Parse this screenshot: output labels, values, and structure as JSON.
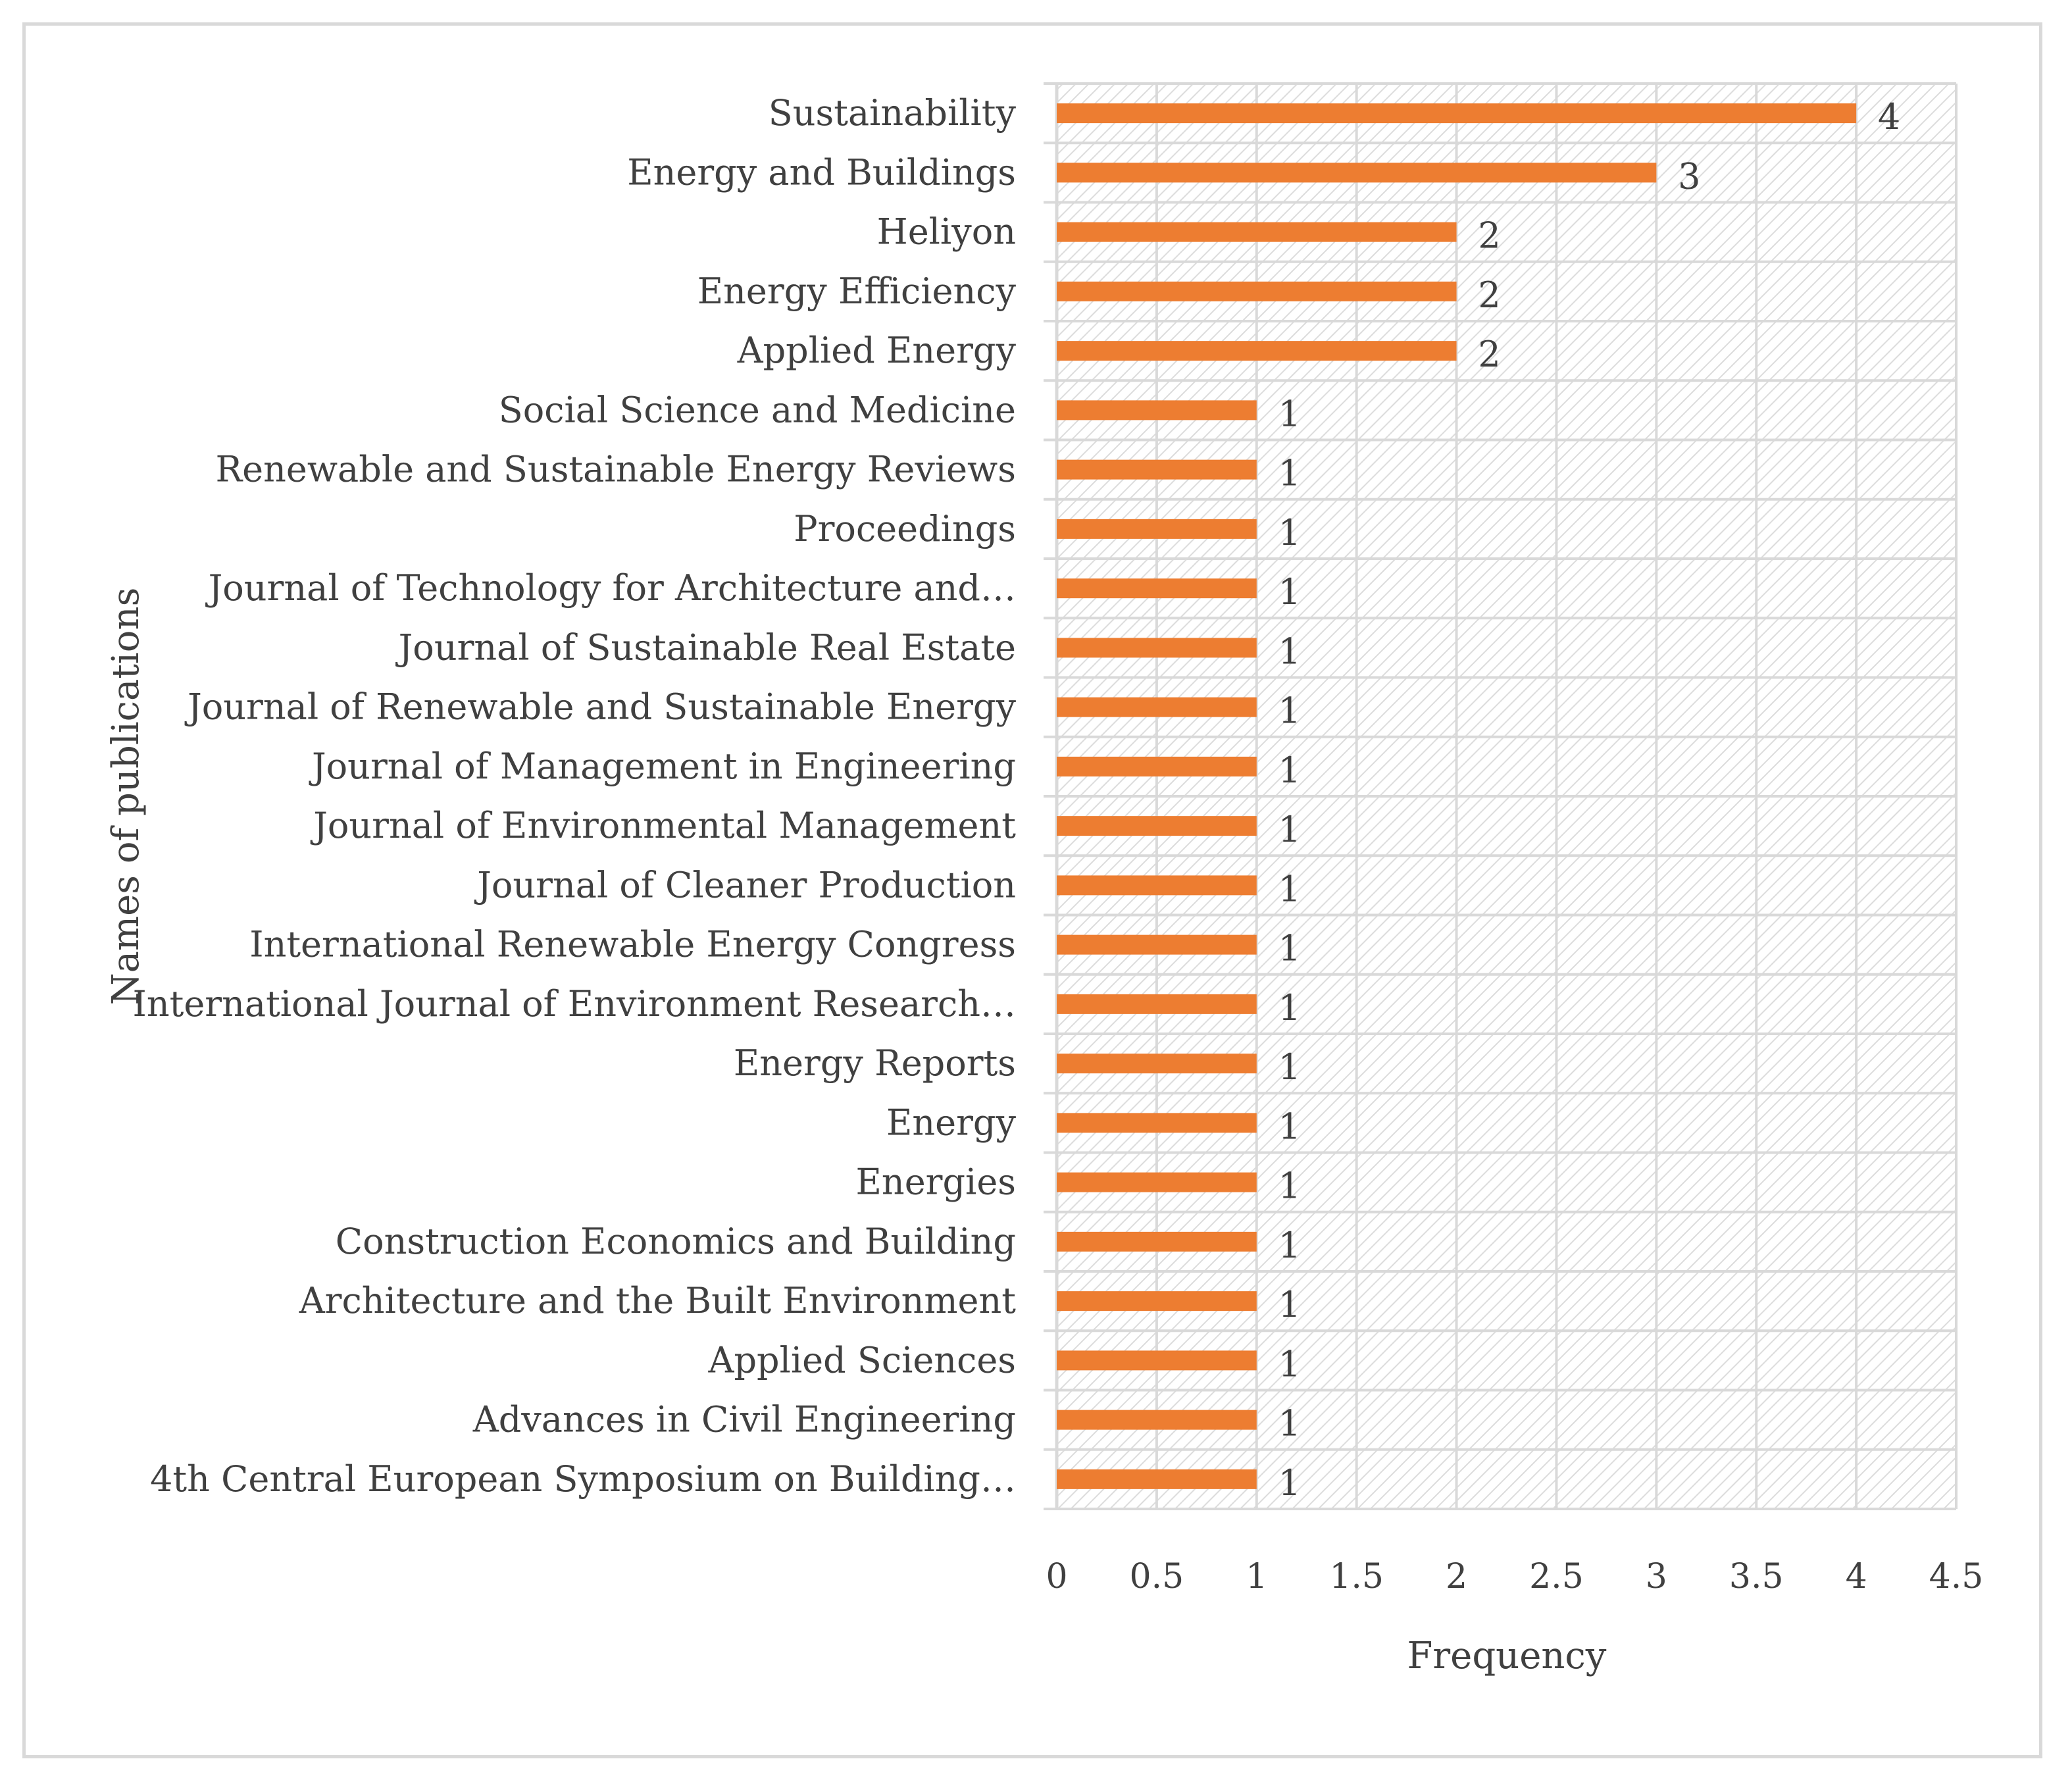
{
  "chart_data": {
    "type": "bar",
    "orientation": "horizontal",
    "title": "",
    "xlabel": "Frequency",
    "ylabel": "Names of publications",
    "xlim": [
      0,
      4.5
    ],
    "x_ticks": [
      "0",
      "0.5",
      "1",
      "1.5",
      "2",
      "2.5",
      "3",
      "3.5",
      "4",
      "4.5"
    ],
    "grid": true,
    "legend": "none",
    "bar_color": "#ed7d31",
    "categories": [
      "Sustainability",
      "Energy and Buildings",
      "Heliyon",
      "Energy Efficiency",
      "Applied Energy",
      "Social Science and Medicine",
      "Renewable and Sustainable Energy Reviews",
      "Proceedings",
      "Journal of Technology for Architecture and…",
      "Journal of Sustainable Real Estate",
      "Journal of Renewable and Sustainable Energy",
      "Journal of Management in Engineering",
      "Journal of Environmental Management",
      "Journal of Cleaner Production",
      "International Renewable Energy Congress",
      "International Journal of Environment Research…",
      "Energy Reports",
      "Energy",
      "Energies",
      "Construction Economics and Building",
      "Architecture and the Built Environment",
      "Applied Sciences",
      "Advances in Civil Engineering",
      "4th Central European Symposium on Building…"
    ],
    "values": [
      4,
      3,
      2,
      2,
      2,
      1,
      1,
      1,
      1,
      1,
      1,
      1,
      1,
      1,
      1,
      1,
      1,
      1,
      1,
      1,
      1,
      1,
      1,
      1
    ],
    "data_labels": [
      "4",
      "3",
      "2",
      "2",
      "2",
      "1",
      "1",
      "1",
      "1",
      "1",
      "1",
      "1",
      "1",
      "1",
      "1",
      "1",
      "1",
      "1",
      "1",
      "1",
      "1",
      "1",
      "1",
      "1"
    ]
  }
}
